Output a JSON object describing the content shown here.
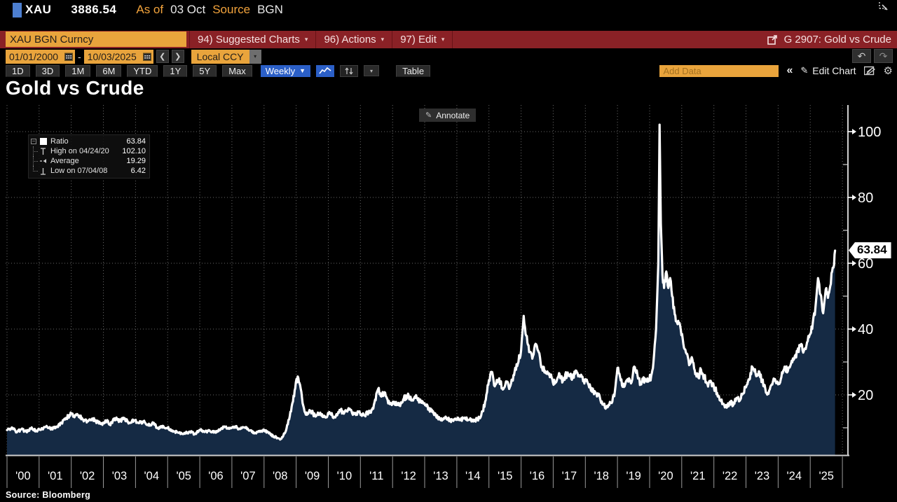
{
  "topbar": {
    "ticker": "XAU",
    "price": "3886.54",
    "as_of_label": "As of",
    "as_of_date": "03 Oct",
    "source_label": "Source",
    "source_value": "BGN"
  },
  "command_bar": {
    "security_input": "XAU BGN Curncy",
    "buttons": [
      {
        "label": "94) Suggested Charts"
      },
      {
        "label": "96) Actions"
      },
      {
        "label": "97) Edit"
      }
    ],
    "chart_id": "G 2907: Gold vs Crude"
  },
  "date_bar": {
    "start_date": "01/01/2000",
    "end_date": "10/03/2025",
    "currency": "Local CCY"
  },
  "toolbar": {
    "periods": [
      "1D",
      "3D",
      "1M",
      "6M",
      "YTD",
      "1Y",
      "5Y",
      "Max"
    ],
    "frequency": "Weekly",
    "table_label": "Table",
    "add_data_placeholder": "Add Data",
    "edit_chart_label": "Edit Chart"
  },
  "title": "Gold vs Crude",
  "annotate_label": "Annotate",
  "legend": {
    "rows": [
      {
        "label": "Ratio",
        "value": "63.84",
        "marker": "white-swatch"
      },
      {
        "label": "High on 04/24/20",
        "value": "102.10",
        "marker": "high-marker"
      },
      {
        "label": "Average",
        "value": "19.29",
        "marker": "average-marker"
      },
      {
        "label": "Low on 07/04/08",
        "value": "6.42",
        "marker": "low-marker"
      }
    ]
  },
  "last_value_label": "63.84",
  "source_footer": "Source: Bloomberg",
  "icons": {
    "caret_down": "▾",
    "caret_down_solid": "▼",
    "undo": "↶",
    "redo": "↷",
    "pencil": "✎",
    "gear": "⚙",
    "collapse": "«",
    "dash": "-",
    "expand_minus": "−"
  },
  "colors": {
    "accent_orange": "#e9a43c",
    "bar_red": "#8a2126",
    "selected_blue": "#2b5fc7",
    "line": "#ffffff",
    "area_fill": "#152a44",
    "grid": "#8d8d8d",
    "axis": "#cfcfcf"
  },
  "chart_data": {
    "type": "area",
    "title": "Gold vs Crude",
    "frequency": "Weekly",
    "x_axis": {
      "labels": [
        "'00",
        "'01",
        "'02",
        "'03",
        "'04",
        "'05",
        "'06",
        "'07",
        "'08",
        "'09",
        "'10",
        "'11",
        "'12",
        "'13",
        "'14",
        "'15",
        "'16",
        "'17",
        "'18",
        "'19",
        "'20",
        "'21",
        "'22",
        "'23",
        "'24",
        "'25"
      ],
      "start_year": 2000,
      "end_year": 2025.79
    },
    "y_axis": {
      "major_ticks": [
        20,
        40,
        60,
        80,
        100
      ],
      "minor_ticks": [
        10,
        30,
        50,
        70,
        90
      ],
      "range": [
        1.5,
        106
      ]
    },
    "grid": true,
    "legend_position": "top-left",
    "series": [
      {
        "name": "Ratio",
        "last_value": 63.84,
        "high": {
          "date": "04/24/20",
          "value": 102.1
        },
        "average": 19.29,
        "low": {
          "date": "07/04/08",
          "value": 6.42
        },
        "keypoints": [
          [
            2000.0,
            9.3
          ],
          [
            2000.15,
            10.1
          ],
          [
            2000.3,
            8.6
          ],
          [
            2000.45,
            9.6
          ],
          [
            2000.6,
            8.8
          ],
          [
            2000.75,
            9.9
          ],
          [
            2000.9,
            9.2
          ],
          [
            2001.1,
            9.6
          ],
          [
            2001.25,
            10.3
          ],
          [
            2001.4,
            9.7
          ],
          [
            2001.55,
            10.4
          ],
          [
            2001.7,
            11.6
          ],
          [
            2001.85,
            13.0
          ],
          [
            2002.0,
            14.3
          ],
          [
            2002.1,
            13.2
          ],
          [
            2002.2,
            14.0
          ],
          [
            2002.35,
            12.6
          ],
          [
            2002.5,
            12.0
          ],
          [
            2002.65,
            12.8
          ],
          [
            2002.8,
            11.8
          ],
          [
            2002.95,
            11.2
          ],
          [
            2003.1,
            12.1
          ],
          [
            2003.2,
            11.0
          ],
          [
            2003.35,
            12.9
          ],
          [
            2003.5,
            12.2
          ],
          [
            2003.65,
            12.7
          ],
          [
            2003.8,
            11.6
          ],
          [
            2003.95,
            12.3
          ],
          [
            2004.1,
            11.4
          ],
          [
            2004.25,
            12.0
          ],
          [
            2004.4,
            10.7
          ],
          [
            2004.55,
            11.3
          ],
          [
            2004.7,
            9.9
          ],
          [
            2004.85,
            10.6
          ],
          [
            2005.0,
            10.0
          ],
          [
            2005.15,
            9.2
          ],
          [
            2005.3,
            8.6
          ],
          [
            2005.5,
            8.2
          ],
          [
            2005.7,
            8.8
          ],
          [
            2005.85,
            8.1
          ],
          [
            2006.0,
            9.4
          ],
          [
            2006.15,
            8.7
          ],
          [
            2006.3,
            9.2
          ],
          [
            2006.5,
            8.5
          ],
          [
            2006.65,
            9.6
          ],
          [
            2006.8,
            10.3
          ],
          [
            2006.95,
            9.8
          ],
          [
            2007.1,
            10.4
          ],
          [
            2007.25,
            9.6
          ],
          [
            2007.4,
            10.1
          ],
          [
            2007.55,
            9.2
          ],
          [
            2007.7,
            8.3
          ],
          [
            2007.85,
            8.8
          ],
          [
            2008.0,
            9.4
          ],
          [
            2008.15,
            8.3
          ],
          [
            2008.3,
            7.4
          ],
          [
            2008.42,
            6.9
          ],
          [
            2008.5,
            6.42
          ],
          [
            2008.6,
            7.6
          ],
          [
            2008.7,
            9.8
          ],
          [
            2008.8,
            13.5
          ],
          [
            2008.9,
            18.0
          ],
          [
            2008.97,
            22.0
          ],
          [
            2009.05,
            25.6
          ],
          [
            2009.12,
            23.0
          ],
          [
            2009.2,
            17.5
          ],
          [
            2009.3,
            14.0
          ],
          [
            2009.45,
            15.2
          ],
          [
            2009.6,
            13.4
          ],
          [
            2009.75,
            14.6
          ],
          [
            2009.9,
            13.2
          ],
          [
            2010.05,
            14.4
          ],
          [
            2010.2,
            13.2
          ],
          [
            2010.35,
            15.4
          ],
          [
            2010.5,
            14.6
          ],
          [
            2010.65,
            15.5
          ],
          [
            2010.8,
            14.2
          ],
          [
            2010.95,
            14.8
          ],
          [
            2011.1,
            13.8
          ],
          [
            2011.25,
            14.6
          ],
          [
            2011.4,
            15.8
          ],
          [
            2011.55,
            21.8
          ],
          [
            2011.65,
            19.5
          ],
          [
            2011.75,
            20.8
          ],
          [
            2011.9,
            17.3
          ],
          [
            2012.05,
            17.9
          ],
          [
            2012.2,
            16.8
          ],
          [
            2012.35,
            18.9
          ],
          [
            2012.5,
            19.8
          ],
          [
            2012.6,
            18.3
          ],
          [
            2012.75,
            19.2
          ],
          [
            2012.9,
            17.6
          ],
          [
            2013.05,
            16.6
          ],
          [
            2013.2,
            15.1
          ],
          [
            2013.35,
            13.6
          ],
          [
            2013.5,
            12.3
          ],
          [
            2013.65,
            13.4
          ],
          [
            2013.8,
            12.2
          ],
          [
            2013.95,
            12.8
          ],
          [
            2014.1,
            12.3
          ],
          [
            2014.25,
            13.1
          ],
          [
            2014.4,
            12.4
          ],
          [
            2014.55,
            12.1
          ],
          [
            2014.7,
            13.0
          ],
          [
            2014.8,
            15.0
          ],
          [
            2014.9,
            18.5
          ],
          [
            2015.0,
            24.5
          ],
          [
            2015.08,
            27.0
          ],
          [
            2015.18,
            22.6
          ],
          [
            2015.3,
            24.4
          ],
          [
            2015.45,
            21.8
          ],
          [
            2015.55,
            24.0
          ],
          [
            2015.65,
            22.4
          ],
          [
            2015.78,
            26.0
          ],
          [
            2015.9,
            29.5
          ],
          [
            2016.0,
            33.5
          ],
          [
            2016.08,
            44.0
          ],
          [
            2016.16,
            38.0
          ],
          [
            2016.25,
            33.0
          ],
          [
            2016.35,
            31.0
          ],
          [
            2016.45,
            35.5
          ],
          [
            2016.55,
            33.0
          ],
          [
            2016.65,
            28.5
          ],
          [
            2016.8,
            26.4
          ],
          [
            2016.95,
            25.2
          ],
          [
            2017.05,
            23.4
          ],
          [
            2017.2,
            26.3
          ],
          [
            2017.3,
            24.2
          ],
          [
            2017.45,
            26.8
          ],
          [
            2017.6,
            25.4
          ],
          [
            2017.7,
            27.4
          ],
          [
            2017.85,
            25.6
          ],
          [
            2017.95,
            24.6
          ],
          [
            2018.1,
            23.0
          ],
          [
            2018.25,
            21.2
          ],
          [
            2018.4,
            19.8
          ],
          [
            2018.55,
            17.2
          ],
          [
            2018.65,
            16.3
          ],
          [
            2018.8,
            17.6
          ],
          [
            2018.9,
            19.6
          ],
          [
            2019.0,
            28.2
          ],
          [
            2019.1,
            24.4
          ],
          [
            2019.2,
            22.4
          ],
          [
            2019.3,
            24.6
          ],
          [
            2019.42,
            23.5
          ],
          [
            2019.52,
            28.6
          ],
          [
            2019.62,
            26.0
          ],
          [
            2019.72,
            23.5
          ],
          [
            2019.85,
            25.0
          ],
          [
            2019.95,
            24.0
          ],
          [
            2020.05,
            25.8
          ],
          [
            2020.12,
            30.0
          ],
          [
            2020.2,
            40.0
          ],
          [
            2020.27,
            60.0
          ],
          [
            2020.31,
            102.1
          ],
          [
            2020.35,
            72.0
          ],
          [
            2020.4,
            56.5
          ],
          [
            2020.45,
            52.5
          ],
          [
            2020.52,
            57.5
          ],
          [
            2020.58,
            52.5
          ],
          [
            2020.64,
            55.5
          ],
          [
            2020.7,
            50.0
          ],
          [
            2020.78,
            44.5
          ],
          [
            2020.85,
            42.0
          ],
          [
            2020.95,
            41.0
          ],
          [
            2021.05,
            35.5
          ],
          [
            2021.15,
            32.5
          ],
          [
            2021.25,
            29.3
          ],
          [
            2021.33,
            30.8
          ],
          [
            2021.42,
            26.3
          ],
          [
            2021.52,
            25.2
          ],
          [
            2021.6,
            27.6
          ],
          [
            2021.7,
            25.4
          ],
          [
            2021.8,
            23.3
          ],
          [
            2021.9,
            24.3
          ],
          [
            2022.0,
            22.4
          ],
          [
            2022.1,
            20.6
          ],
          [
            2022.2,
            18.4
          ],
          [
            2022.3,
            17.3
          ],
          [
            2022.4,
            16.1
          ],
          [
            2022.5,
            17.9
          ],
          [
            2022.6,
            16.8
          ],
          [
            2022.7,
            19.0
          ],
          [
            2022.8,
            18.2
          ],
          [
            2022.9,
            20.4
          ],
          [
            2023.0,
            22.3
          ],
          [
            2023.1,
            24.6
          ],
          [
            2023.2,
            28.4
          ],
          [
            2023.3,
            26.3
          ],
          [
            2023.4,
            27.2
          ],
          [
            2023.5,
            24.3
          ],
          [
            2023.6,
            21.8
          ],
          [
            2023.7,
            20.3
          ],
          [
            2023.8,
            23.2
          ],
          [
            2023.9,
            24.8
          ],
          [
            2024.0,
            23.2
          ],
          [
            2024.1,
            25.4
          ],
          [
            2024.2,
            28.6
          ],
          [
            2024.3,
            27.2
          ],
          [
            2024.4,
            29.4
          ],
          [
            2024.5,
            31.0
          ],
          [
            2024.6,
            33.4
          ],
          [
            2024.7,
            35.2
          ],
          [
            2024.8,
            33.4
          ],
          [
            2024.9,
            36.0
          ],
          [
            2025.0,
            38.5
          ],
          [
            2025.08,
            42.0
          ],
          [
            2025.16,
            46.5
          ],
          [
            2025.24,
            55.5
          ],
          [
            2025.32,
            50.5
          ],
          [
            2025.4,
            44.8
          ],
          [
            2025.48,
            52.0
          ],
          [
            2025.55,
            49.5
          ],
          [
            2025.62,
            53.0
          ],
          [
            2025.68,
            57.5
          ],
          [
            2025.74,
            59.5
          ],
          [
            2025.77,
            63.84
          ]
        ]
      }
    ]
  }
}
